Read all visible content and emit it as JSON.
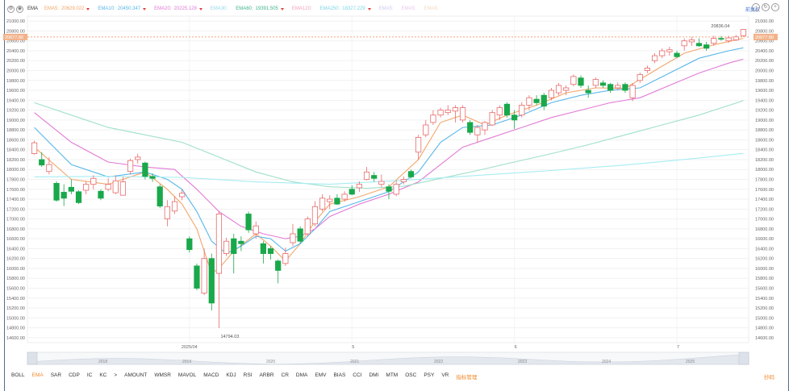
{
  "toolbar": {
    "indicator": "EMA",
    "legends": [
      {
        "label": "EMA5:",
        "value": "20629.022",
        "color": "#f2a66a"
      },
      {
        "label": "EMA10:",
        "value": "20450.347",
        "color": "#57b7e8"
      },
      {
        "label": "EMA20:",
        "value": "20225.128",
        "color": "#e27ad6"
      },
      {
        "label": "EMA30:",
        "value": "",
        "color": "#9ad7e8"
      },
      {
        "label": "EMA60:",
        "value": "19391.505",
        "color": "#43b28d"
      },
      {
        "label": "EMA120:",
        "value": "",
        "color": "#f1a3c0"
      },
      {
        "label": "EMA250:",
        "value": "18327.229",
        "color": "#7fd5e8"
      },
      {
        "label": "EMA5:",
        "value": "",
        "color": "#cfcaf2"
      },
      {
        "label": "EMA5:",
        "value": "",
        "color": "#e7c6f0"
      },
      {
        "label": "EMA5:",
        "value": "",
        "color": "#f6d7bf"
      }
    ],
    "right_link": "前复权"
  },
  "price_axis": {
    "ticks": [
      "21000.00",
      "20800.00",
      "20600.00",
      "20400.00",
      "20200.00",
      "20000.00",
      "19800.00",
      "19600.00",
      "19400.00",
      "19200.00",
      "19000.00",
      "18800.00",
      "18600.00",
      "18400.00",
      "18200.00",
      "18000.00",
      "17800.00",
      "17600.00",
      "17400.00",
      "17200.00",
      "17000.00",
      "16800.00",
      "16600.00",
      "16400.00",
      "16200.00",
      "16000.00",
      "15800.00",
      "15600.00",
      "15400.00",
      "15200.00",
      "15000.00",
      "14800.00",
      "14600.00"
    ],
    "current_price": "20677.80",
    "high_label": "20836.04",
    "low_label": "14794.03"
  },
  "time_axis": {
    "labels": [
      "2025/04",
      "5",
      "6",
      "7"
    ]
  },
  "navigator": {
    "years": [
      "2018",
      "2019",
      "2020",
      "2021",
      "2022",
      "2023",
      "2024",
      "2025"
    ]
  },
  "bottom_tabs": [
    "BOLL",
    "EMA",
    "SAR",
    "CDP",
    "IC",
    "KC",
    ">",
    "AMOUNT",
    "WMSR",
    "MAVOL",
    "MACD",
    "KDJ",
    "RSI",
    "ARBR",
    "CR",
    "DMA",
    "EMV",
    "BIAS",
    "CCI",
    "DMI",
    "MTM",
    "OSC",
    "PSY",
    "VR",
    "指标管理"
  ],
  "active_tab": "EMA",
  "bottom_right": "抄码",
  "chart_data": {
    "type": "candlestick",
    "ylim": [
      14500,
      21100
    ],
    "up_color": "#e86a6a",
    "down_color": "#19a84a",
    "candles": [
      {
        "o": 18320,
        "c": 18540,
        "h": 18580,
        "l": 18300
      },
      {
        "o": 18200,
        "c": 18090,
        "h": 18350,
        "l": 18050
      },
      {
        "o": 17960,
        "c": 18100,
        "h": 18250,
        "l": 17900
      },
      {
        "o": 17720,
        "c": 17380,
        "h": 17760,
        "l": 17350
      },
      {
        "o": 17540,
        "c": 17420,
        "h": 17700,
        "l": 17260
      },
      {
        "o": 17640,
        "c": 17560,
        "h": 17800,
        "l": 17500
      },
      {
        "o": 17550,
        "c": 17330,
        "h": 17580,
        "l": 17300
      },
      {
        "o": 17580,
        "c": 17700,
        "h": 17760,
        "l": 17500
      },
      {
        "o": 17700,
        "c": 17820,
        "h": 17880,
        "l": 17600
      },
      {
        "o": 17560,
        "c": 17420,
        "h": 17600,
        "l": 17380
      },
      {
        "o": 17600,
        "c": 17700,
        "h": 17820,
        "l": 17560
      },
      {
        "o": 17530,
        "c": 17770,
        "h": 17880,
        "l": 17500
      },
      {
        "o": 17480,
        "c": 17750,
        "h": 17850,
        "l": 17470
      },
      {
        "o": 17960,
        "c": 18180,
        "h": 18220,
        "l": 17900
      },
      {
        "o": 18200,
        "c": 18250,
        "h": 18320,
        "l": 18120
      },
      {
        "o": 18130,
        "c": 17860,
        "h": 18160,
        "l": 17800
      },
      {
        "o": 17860,
        "c": 17820,
        "h": 17920,
        "l": 17750
      },
      {
        "o": 17650,
        "c": 17260,
        "h": 17700,
        "l": 17220
      },
      {
        "o": 17000,
        "c": 17250,
        "h": 17380,
        "l": 16850
      },
      {
        "o": 17160,
        "c": 17350,
        "h": 17460,
        "l": 17100
      },
      {
        "o": 17450,
        "c": 17520,
        "h": 17600,
        "l": 17380
      },
      {
        "o": 16600,
        "c": 16380,
        "h": 16650,
        "l": 16320
      },
      {
        "o": 16050,
        "c": 15600,
        "h": 16100,
        "l": 15560
      },
      {
        "o": 15500,
        "c": 16200,
        "h": 16400,
        "l": 15460
      },
      {
        "o": 16200,
        "c": 15300,
        "h": 16300,
        "l": 15150
      },
      {
        "o": 15900,
        "c": 17100,
        "h": 17160,
        "l": 14794
      },
      {
        "o": 16300,
        "c": 16550,
        "h": 16620,
        "l": 16250
      },
      {
        "o": 16600,
        "c": 16300,
        "h": 16700,
        "l": 15900
      },
      {
        "o": 16550,
        "c": 16500,
        "h": 16650,
        "l": 16350
      },
      {
        "o": 17100,
        "c": 16780,
        "h": 17150,
        "l": 16720
      },
      {
        "o": 16700,
        "c": 16860,
        "h": 16950,
        "l": 16600
      },
      {
        "o": 16500,
        "c": 16300,
        "h": 16550,
        "l": 16100
      },
      {
        "o": 16400,
        "c": 16300,
        "h": 16450,
        "l": 16180
      },
      {
        "o": 16150,
        "c": 15960,
        "h": 16180,
        "l": 15700
      },
      {
        "o": 16100,
        "c": 16300,
        "h": 16420,
        "l": 16050
      },
      {
        "o": 16520,
        "c": 16700,
        "h": 16900,
        "l": 16450
      },
      {
        "o": 16800,
        "c": 16550,
        "h": 16850,
        "l": 16500
      },
      {
        "o": 16700,
        "c": 17000,
        "h": 17050,
        "l": 16650
      },
      {
        "o": 16900,
        "c": 17250,
        "h": 17360,
        "l": 16850
      },
      {
        "o": 17200,
        "c": 17420,
        "h": 17500,
        "l": 17150
      },
      {
        "o": 17350,
        "c": 17400,
        "h": 17480,
        "l": 17200
      },
      {
        "o": 17420,
        "c": 17300,
        "h": 17500,
        "l": 17280
      },
      {
        "o": 17400,
        "c": 17500,
        "h": 17560,
        "l": 17350
      },
      {
        "o": 17600,
        "c": 17500,
        "h": 17680,
        "l": 17480
      },
      {
        "o": 17630,
        "c": 17700,
        "h": 17760,
        "l": 17550
      },
      {
        "o": 17800,
        "c": 17950,
        "h": 18050,
        "l": 17780
      },
      {
        "o": 17880,
        "c": 17820,
        "h": 17950,
        "l": 17750
      },
      {
        "o": 17700,
        "c": 17760,
        "h": 17900,
        "l": 17640
      },
      {
        "o": 17650,
        "c": 17560,
        "h": 17700,
        "l": 17400
      },
      {
        "o": 17500,
        "c": 17700,
        "h": 17780,
        "l": 17460
      },
      {
        "o": 17750,
        "c": 17800,
        "h": 17860,
        "l": 17700
      },
      {
        "o": 17960,
        "c": 17850,
        "h": 18000,
        "l": 17820
      },
      {
        "o": 18350,
        "c": 18650,
        "h": 18700,
        "l": 18200
      },
      {
        "o": 18700,
        "c": 18900,
        "h": 19000,
        "l": 18650
      },
      {
        "o": 18950,
        "c": 19100,
        "h": 19200,
        "l": 18900
      },
      {
        "o": 19100,
        "c": 19200,
        "h": 19250,
        "l": 19050
      },
      {
        "o": 19150,
        "c": 19200,
        "h": 19300,
        "l": 19100
      },
      {
        "o": 19180,
        "c": 19250,
        "h": 19300,
        "l": 18950
      },
      {
        "o": 19000,
        "c": 19250,
        "h": 19300,
        "l": 18950
      },
      {
        "o": 18950,
        "c": 18750,
        "h": 19000,
        "l": 18700
      },
      {
        "o": 18700,
        "c": 18850,
        "h": 18900,
        "l": 18550
      },
      {
        "o": 18800,
        "c": 18950,
        "h": 18980,
        "l": 18700
      },
      {
        "o": 18900,
        "c": 19150,
        "h": 19200,
        "l": 18880
      },
      {
        "o": 19100,
        "c": 19250,
        "h": 19300,
        "l": 19000
      },
      {
        "o": 19320,
        "c": 19100,
        "h": 19360,
        "l": 19050
      },
      {
        "o": 19100,
        "c": 19000,
        "h": 19200,
        "l": 18820
      },
      {
        "o": 19100,
        "c": 19300,
        "h": 19360,
        "l": 19050
      },
      {
        "o": 19300,
        "c": 19450,
        "h": 19500,
        "l": 19200
      },
      {
        "o": 19420,
        "c": 19350,
        "h": 19500,
        "l": 19300
      },
      {
        "o": 19500,
        "c": 19280,
        "h": 19550,
        "l": 19200
      },
      {
        "o": 19450,
        "c": 19600,
        "h": 19650,
        "l": 19400
      },
      {
        "o": 19550,
        "c": 19700,
        "h": 19750,
        "l": 19500
      },
      {
        "o": 19600,
        "c": 19650,
        "h": 19700,
        "l": 19500
      },
      {
        "o": 19720,
        "c": 19880,
        "h": 19920,
        "l": 19680
      },
      {
        "o": 19850,
        "c": 19700,
        "h": 19900,
        "l": 19650
      },
      {
        "o": 19600,
        "c": 19550,
        "h": 19700,
        "l": 19450
      },
      {
        "o": 19700,
        "c": 19820,
        "h": 19860,
        "l": 19650
      },
      {
        "o": 19750,
        "c": 19700,
        "h": 19800,
        "l": 19650
      },
      {
        "o": 19720,
        "c": 19600,
        "h": 19750,
        "l": 19550
      },
      {
        "o": 19650,
        "c": 19700,
        "h": 19760,
        "l": 19600
      },
      {
        "o": 19720,
        "c": 19600,
        "h": 19760,
        "l": 19550
      },
      {
        "o": 19450,
        "c": 19700,
        "h": 19750,
        "l": 19380
      },
      {
        "o": 19800,
        "c": 19920,
        "h": 19960,
        "l": 19750
      },
      {
        "o": 20000,
        "c": 20050,
        "h": 20100,
        "l": 19950
      },
      {
        "o": 20200,
        "c": 20300,
        "h": 20350,
        "l": 20150
      },
      {
        "o": 20300,
        "c": 20400,
        "h": 20450,
        "l": 20250
      },
      {
        "o": 20380,
        "c": 20420,
        "h": 20480,
        "l": 20300
      },
      {
        "o": 20350,
        "c": 20280,
        "h": 20400,
        "l": 20250
      },
      {
        "o": 20500,
        "c": 20600,
        "h": 20650,
        "l": 20400
      },
      {
        "o": 20580,
        "c": 20620,
        "h": 20680,
        "l": 20500
      },
      {
        "o": 20550,
        "c": 20500,
        "h": 20650,
        "l": 20480
      },
      {
        "o": 20520,
        "c": 20450,
        "h": 20580,
        "l": 20400
      },
      {
        "o": 20550,
        "c": 20650,
        "h": 20700,
        "l": 20500
      },
      {
        "o": 20650,
        "c": 20640,
        "h": 20700,
        "l": 20600
      },
      {
        "o": 20600,
        "c": 20660,
        "h": 20700,
        "l": 20560
      },
      {
        "o": 20620,
        "c": 20680,
        "h": 20720,
        "l": 20600
      },
      {
        "o": 20700,
        "c": 20830,
        "h": 20836,
        "l": 20680
      }
    ],
    "ema_lines": [
      {
        "name": "EMA5",
        "color": "#f2a66a",
        "pts": [
          [
            0,
            18450
          ],
          [
            5,
            17800
          ],
          [
            10,
            17700
          ],
          [
            15,
            17950
          ],
          [
            18,
            17600
          ],
          [
            20,
            17300
          ],
          [
            22,
            16800
          ],
          [
            24,
            15900
          ],
          [
            25,
            16000
          ],
          [
            27,
            16350
          ],
          [
            30,
            16700
          ],
          [
            32,
            16450
          ],
          [
            34,
            16150
          ],
          [
            36,
            16500
          ],
          [
            38,
            16950
          ],
          [
            40,
            17300
          ],
          [
            44,
            17450
          ],
          [
            48,
            17650
          ],
          [
            52,
            18200
          ],
          [
            55,
            18950
          ],
          [
            58,
            19100
          ],
          [
            61,
            18900
          ],
          [
            64,
            19100
          ],
          [
            68,
            19300
          ],
          [
            72,
            19550
          ],
          [
            76,
            19650
          ],
          [
            80,
            19640
          ],
          [
            84,
            20000
          ],
          [
            88,
            20350
          ],
          [
            92,
            20520
          ],
          [
            96,
            20650
          ]
        ]
      },
      {
        "name": "EMA10",
        "color": "#57b7e8",
        "pts": [
          [
            0,
            18850
          ],
          [
            5,
            18100
          ],
          [
            10,
            17850
          ],
          [
            15,
            17950
          ],
          [
            18,
            17800
          ],
          [
            20,
            17600
          ],
          [
            22,
            17150
          ],
          [
            24,
            16550
          ],
          [
            26,
            16300
          ],
          [
            28,
            16450
          ],
          [
            30,
            16650
          ],
          [
            32,
            16600
          ],
          [
            34,
            16350
          ],
          [
            36,
            16500
          ],
          [
            38,
            16800
          ],
          [
            40,
            17150
          ],
          [
            44,
            17350
          ],
          [
            48,
            17550
          ],
          [
            52,
            17950
          ],
          [
            55,
            18550
          ],
          [
            58,
            18850
          ],
          [
            62,
            18900
          ],
          [
            66,
            19100
          ],
          [
            70,
            19350
          ],
          [
            74,
            19500
          ],
          [
            78,
            19600
          ],
          [
            82,
            19650
          ],
          [
            86,
            19950
          ],
          [
            90,
            20250
          ],
          [
            94,
            20400
          ],
          [
            96,
            20460
          ]
        ]
      },
      {
        "name": "EMA20",
        "color": "#e27ad6",
        "pts": [
          [
            0,
            19150
          ],
          [
            5,
            18550
          ],
          [
            10,
            18150
          ],
          [
            15,
            18050
          ],
          [
            19,
            18000
          ],
          [
            22,
            17600
          ],
          [
            25,
            17150
          ],
          [
            28,
            16850
          ],
          [
            31,
            16700
          ],
          [
            34,
            16600
          ],
          [
            36,
            16650
          ],
          [
            38,
            16800
          ],
          [
            40,
            17050
          ],
          [
            44,
            17300
          ],
          [
            48,
            17500
          ],
          [
            52,
            17750
          ],
          [
            55,
            18100
          ],
          [
            58,
            18450
          ],
          [
            62,
            18650
          ],
          [
            66,
            18850
          ],
          [
            70,
            19050
          ],
          [
            74,
            19200
          ],
          [
            78,
            19350
          ],
          [
            82,
            19450
          ],
          [
            86,
            19700
          ],
          [
            90,
            19950
          ],
          [
            94,
            20150
          ],
          [
            96,
            20230
          ]
        ]
      },
      {
        "name": "EMA60",
        "color": "#9fe0c8",
        "pts": [
          [
            0,
            19350
          ],
          [
            6,
            19050
          ],
          [
            10,
            18850
          ],
          [
            15,
            18700
          ],
          [
            20,
            18550
          ],
          [
            25,
            18250
          ],
          [
            30,
            17950
          ],
          [
            35,
            17750
          ],
          [
            40,
            17650
          ],
          [
            45,
            17620
          ],
          [
            50,
            17660
          ],
          [
            55,
            17820
          ],
          [
            60,
            17980
          ],
          [
            65,
            18150
          ],
          [
            70,
            18320
          ],
          [
            75,
            18500
          ],
          [
            80,
            18700
          ],
          [
            85,
            18900
          ],
          [
            90,
            19100
          ],
          [
            96,
            19390
          ]
        ]
      },
      {
        "name": "EMA250",
        "color": "#a6ecf2",
        "pts": [
          [
            0,
            17850
          ],
          [
            10,
            17860
          ],
          [
            20,
            17840
          ],
          [
            30,
            17750
          ],
          [
            40,
            17700
          ],
          [
            50,
            17780
          ],
          [
            60,
            17880
          ],
          [
            70,
            17980
          ],
          [
            80,
            18090
          ],
          [
            90,
            18230
          ],
          [
            96,
            18327
          ]
        ]
      }
    ]
  }
}
